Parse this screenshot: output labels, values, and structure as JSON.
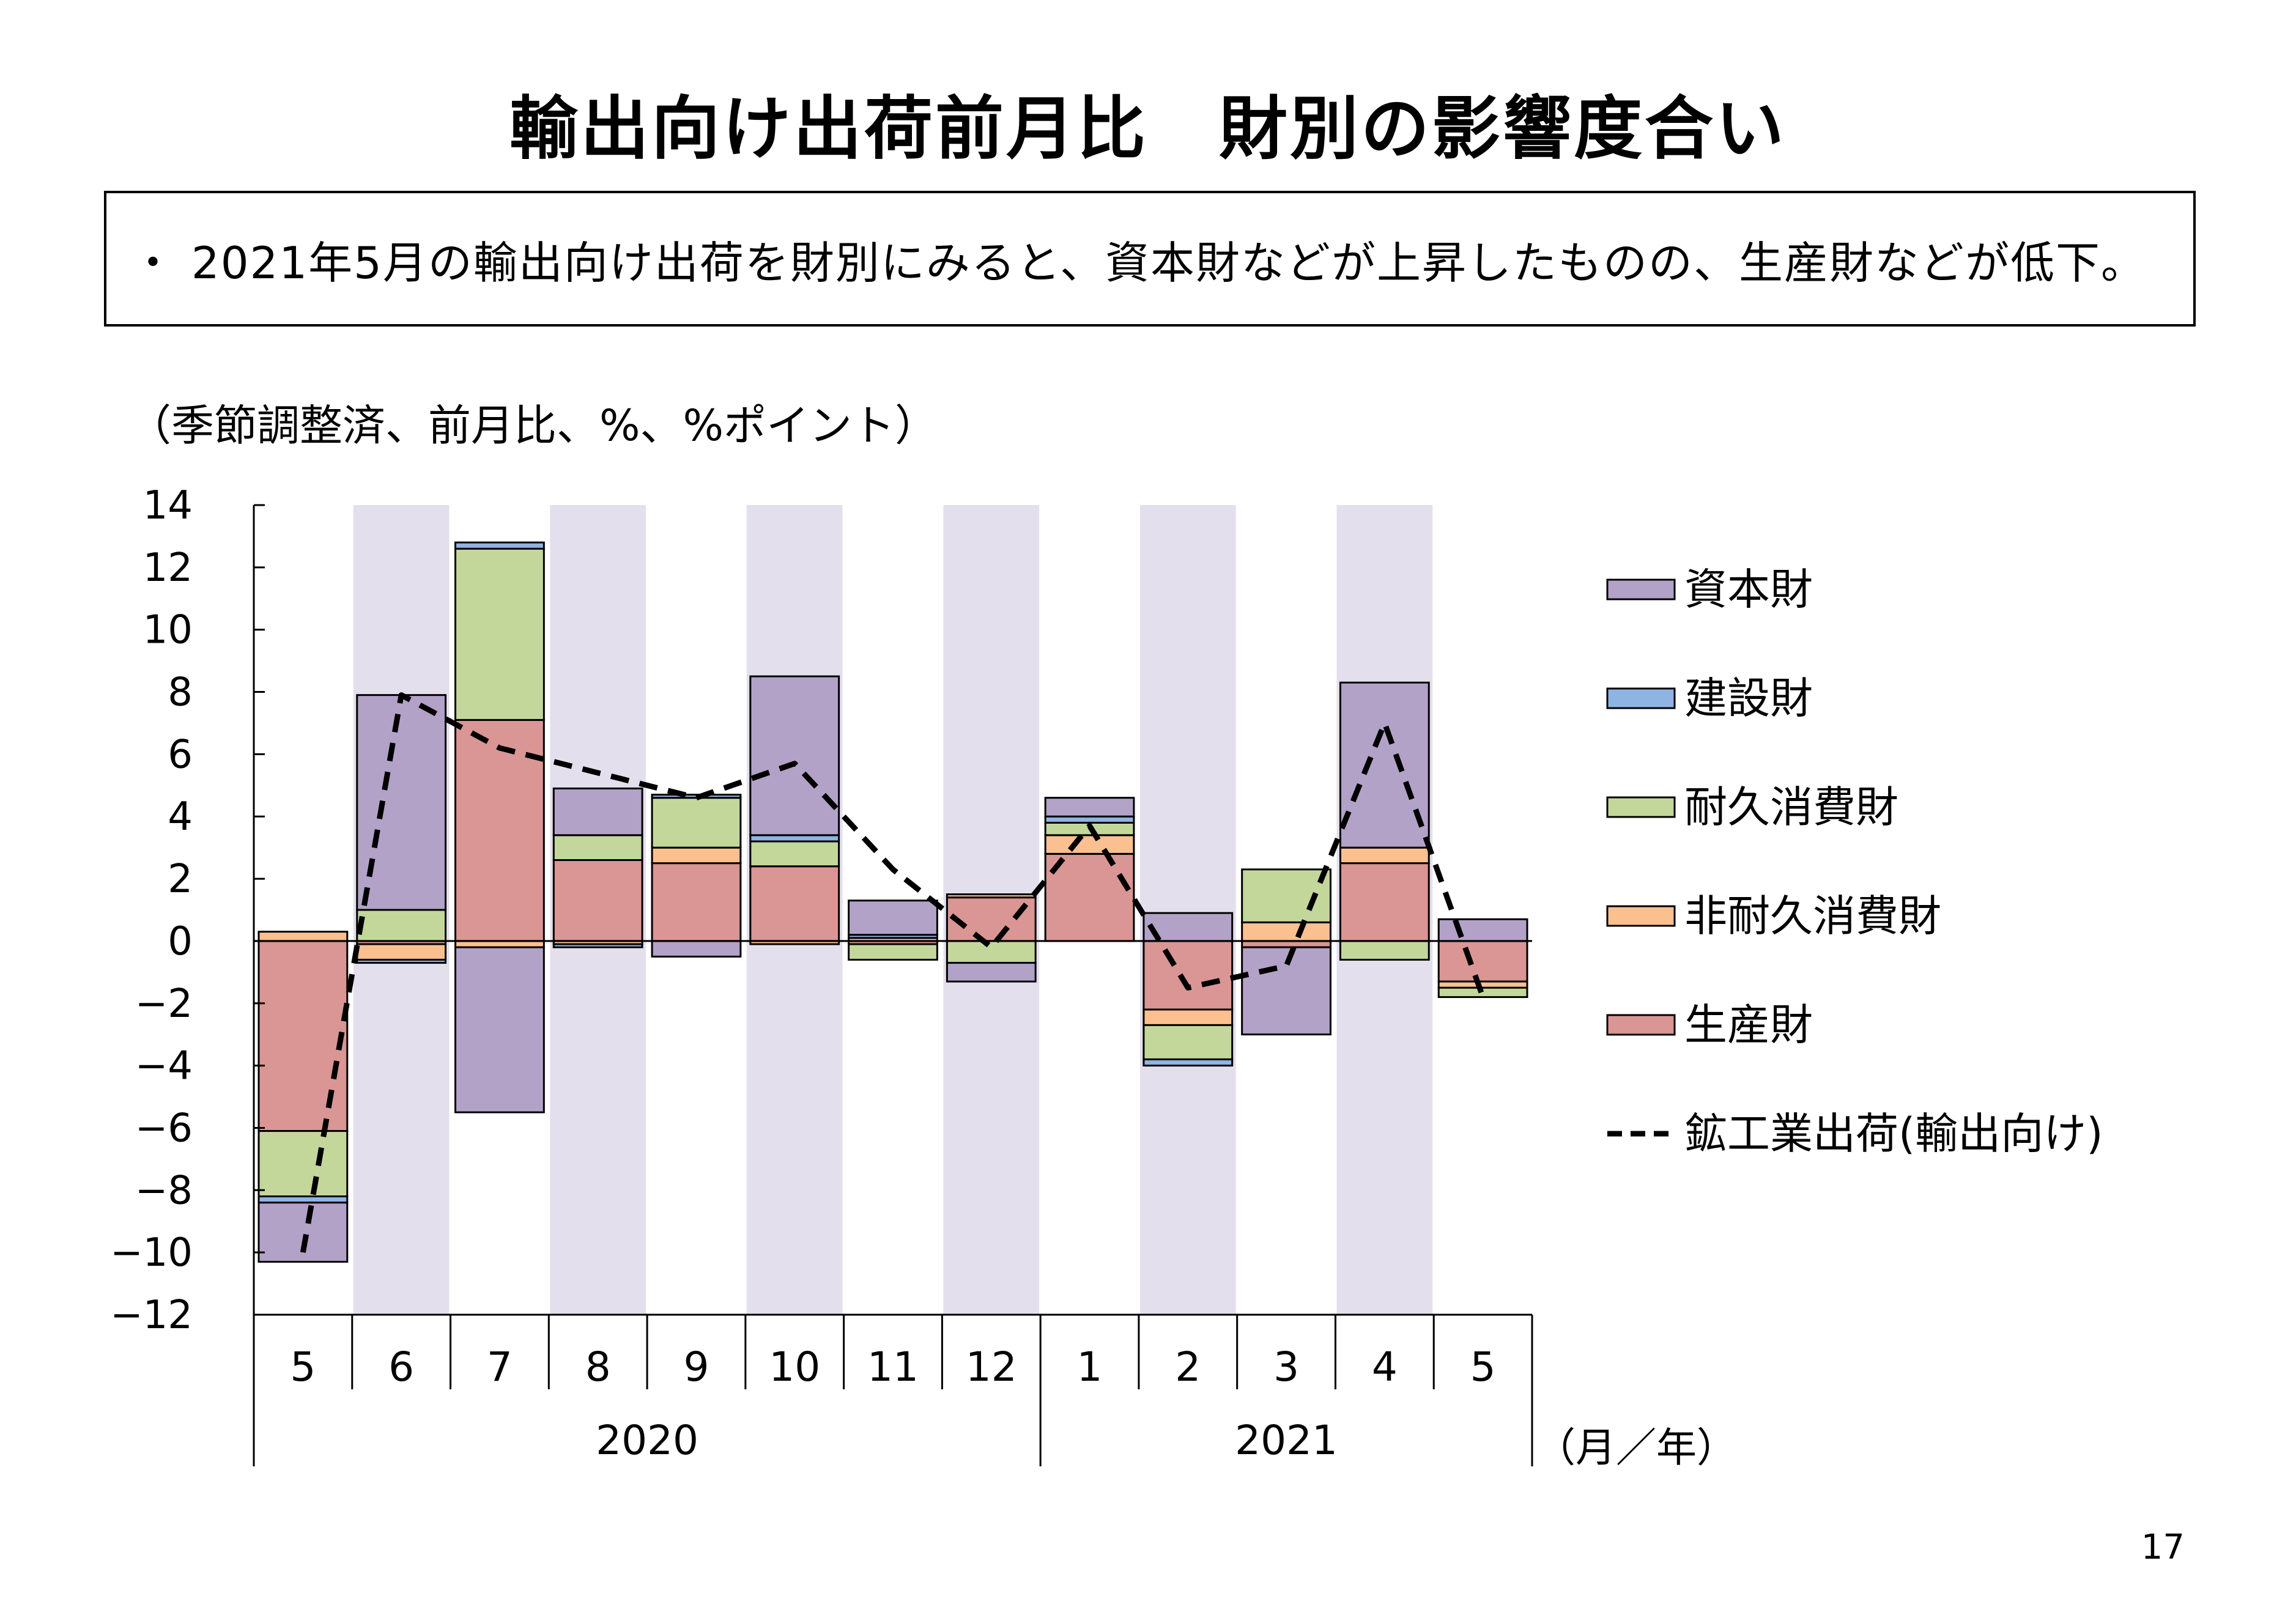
{
  "title": "輸出向け出荷前月比　財別の影響度合い",
  "summary": "・ 2021年5月の輸出向け出荷を財別にみると、資本財などが上昇したものの、生産財などが低下。",
  "unit_note": "（季節調整済、前月比、%、%ポイント）",
  "page_number": "17",
  "colors": {
    "capital": "#b3a2c7",
    "construction": "#8eb4e3",
    "durable": "#c4d79b",
    "nondurable": "#fac090",
    "production": "#d99694",
    "shade": "#e4dfec",
    "line": "#000000"
  },
  "chart_data": {
    "type": "bar",
    "stacked": true,
    "categories": [
      "5",
      "6",
      "7",
      "8",
      "9",
      "10",
      "11",
      "12",
      "1",
      "2",
      "3",
      "4",
      "5"
    ],
    "year_labels": [
      {
        "label": "2020",
        "span": [
          0,
          7
        ]
      },
      {
        "label": "2021",
        "span": [
          8,
          12
        ]
      }
    ],
    "x_unit_label": "（月／年）",
    "ylim": [
      -12,
      14
    ],
    "yticks": [
      14,
      12,
      10,
      8,
      6,
      4,
      2,
      0,
      -2,
      -4,
      -6,
      -8,
      -10,
      -12
    ],
    "shaded_categories": [
      1,
      3,
      5,
      7,
      9,
      11
    ],
    "series": [
      {
        "key": "production",
        "name": "生産財",
        "values": [
          -6.1,
          -0.1,
          7.1,
          2.6,
          2.5,
          2.4,
          -0.1,
          1.4,
          2.8,
          -2.2,
          -0.2,
          2.5,
          -1.3
        ]
      },
      {
        "key": "nondurable",
        "name": "非耐久消費財",
        "values": [
          0.3,
          -0.5,
          -0.2,
          -0.1,
          0.5,
          -0.1,
          0.1,
          0.1,
          0.6,
          -0.5,
          0.6,
          0.5,
          -0.2
        ]
      },
      {
        "key": "durable",
        "name": "耐久消費財",
        "values": [
          -2.1,
          1.0,
          5.5,
          0.8,
          1.6,
          0.8,
          -0.5,
          -0.7,
          0.4,
          -1.1,
          1.7,
          -0.6,
          -0.3
        ]
      },
      {
        "key": "construction",
        "name": "建設財",
        "values": [
          -0.2,
          -0.1,
          0.2,
          -0.1,
          0.1,
          0.2,
          0.1,
          0.0,
          0.2,
          -0.2,
          0.0,
          0.0,
          0.0
        ]
      },
      {
        "key": "capital",
        "name": "資本財",
        "values": [
          -1.9,
          6.9,
          -5.3,
          1.5,
          -0.5,
          5.1,
          1.1,
          -0.6,
          0.6,
          0.9,
          -2.8,
          5.3,
          0.7
        ]
      }
    ],
    "line_series": {
      "key": "line",
      "name": "鉱工業出荷(輸出向け)",
      "values": [
        -10.0,
        7.9,
        6.2,
        5.4,
        4.6,
        5.7,
        2.3,
        -0.2,
        3.7,
        -1.5,
        -0.8,
        7.0,
        -1.8
      ]
    },
    "legend": {
      "placement": "right",
      "order": [
        "capital",
        "construction",
        "durable",
        "nondurable",
        "production",
        "line"
      ]
    }
  }
}
